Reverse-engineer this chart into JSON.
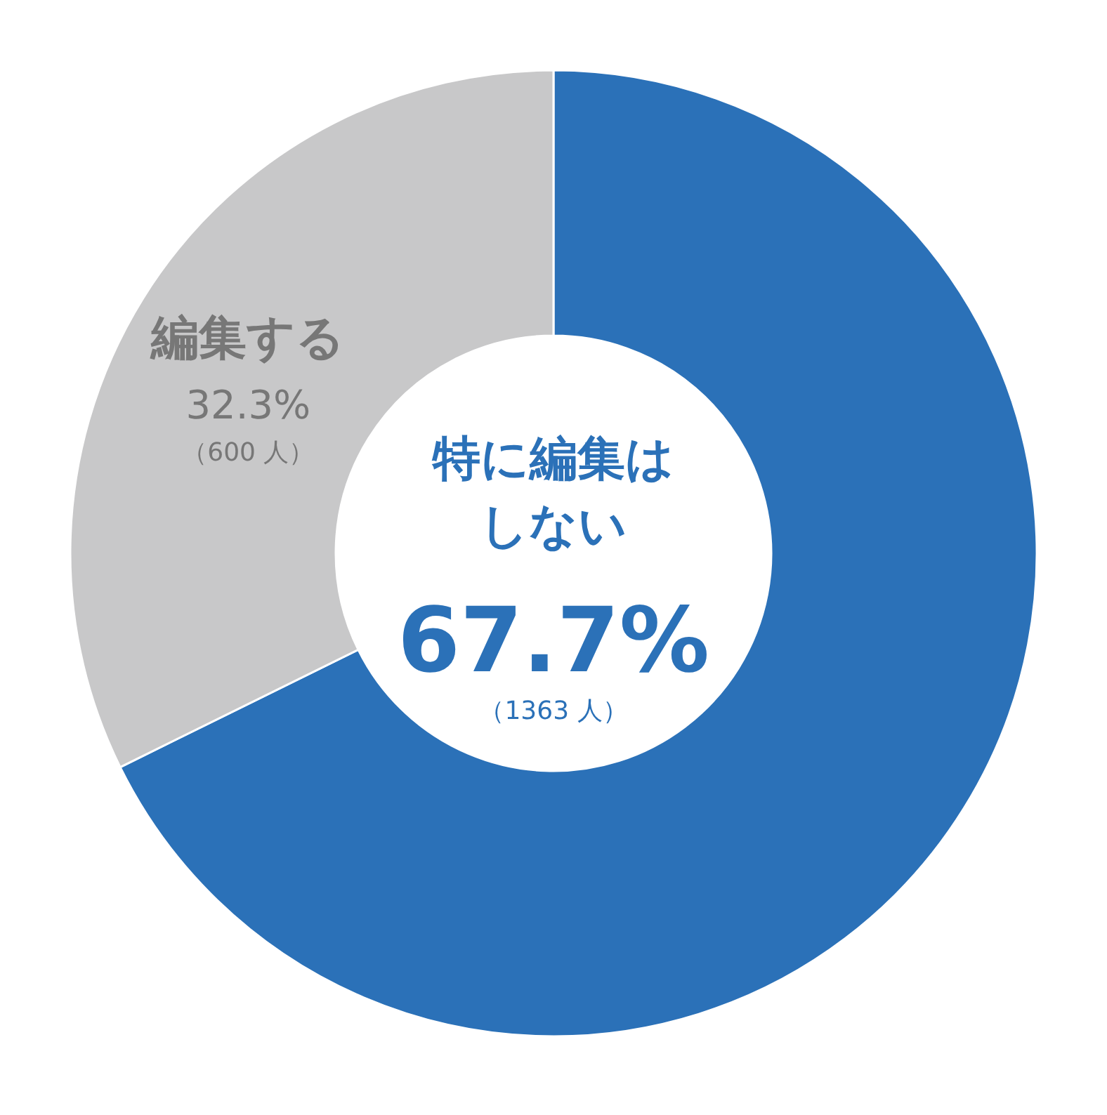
{
  "chart_data": {
    "type": "donut",
    "categories": [
      "特に編集はしない",
      "編集する"
    ],
    "values": [
      67.7,
      32.3
    ],
    "colors": [
      "#2b71b8",
      "#c8c8c9"
    ],
    "value_labels": [
      "67.7%",
      "32.3%"
    ],
    "annotations": [
      "（1363 人）",
      "（600 人）"
    ]
  }
}
